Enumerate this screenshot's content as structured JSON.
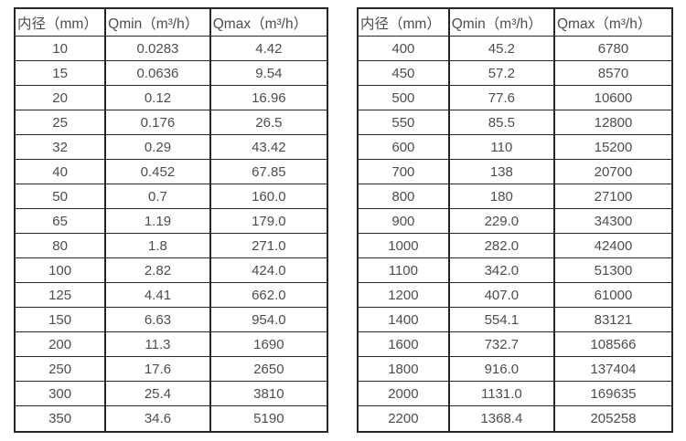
{
  "colors": {
    "background": "#ffffff",
    "border": "#262626",
    "text": "#4d4d4d"
  },
  "chart_data": [
    {
      "type": "table",
      "name": "flow-range-table-small-diameters",
      "columns": [
        "内径（mm）",
        "Qmin（m³/h）",
        "Qmax（m³/h）"
      ],
      "rows": [
        [
          "10",
          "0.0283",
          "4.42"
        ],
        [
          "15",
          "0.0636",
          "9.54"
        ],
        [
          "20",
          "0.12",
          "16.96"
        ],
        [
          "25",
          "0.176",
          "26.5"
        ],
        [
          "32",
          "0.29",
          "43.42"
        ],
        [
          "40",
          "0.452",
          "67.85"
        ],
        [
          "50",
          "0.7",
          "160.0"
        ],
        [
          "65",
          "1.19",
          "179.0"
        ],
        [
          "80",
          "1.8",
          "271.0"
        ],
        [
          "100",
          "2.82",
          "424.0"
        ],
        [
          "125",
          "4.41",
          "662.0"
        ],
        [
          "150",
          "6.63",
          "954.0"
        ],
        [
          "200",
          "11.3",
          "1690"
        ],
        [
          "250",
          "17.6",
          "2650"
        ],
        [
          "300",
          "25.4",
          "3810"
        ],
        [
          "350",
          "34.6",
          "5190"
        ]
      ]
    },
    {
      "type": "table",
      "name": "flow-range-table-large-diameters",
      "columns": [
        "内径（mm）",
        "Qmin（m³/h）",
        "Qmax（m³/h）"
      ],
      "rows": [
        [
          "400",
          "45.2",
          "6780"
        ],
        [
          "450",
          "57.2",
          "8570"
        ],
        [
          "500",
          "77.6",
          "10600"
        ],
        [
          "550",
          "85.5",
          "12800"
        ],
        [
          "600",
          "110",
          "15200"
        ],
        [
          "700",
          "138",
          "20700"
        ],
        [
          "800",
          "180",
          "27100"
        ],
        [
          "900",
          "229.0",
          "34300"
        ],
        [
          "1000",
          "282.0",
          "42400"
        ],
        [
          "1100",
          "342.0",
          "51300"
        ],
        [
          "1200",
          "407.0",
          "61000"
        ],
        [
          "1400",
          "554.1",
          "83121"
        ],
        [
          "1600",
          "732.7",
          "108566"
        ],
        [
          "1800",
          "916.0",
          "137404"
        ],
        [
          "2000",
          "1131.0",
          "169635"
        ],
        [
          "2200",
          "1368.4",
          "205258"
        ]
      ]
    }
  ]
}
